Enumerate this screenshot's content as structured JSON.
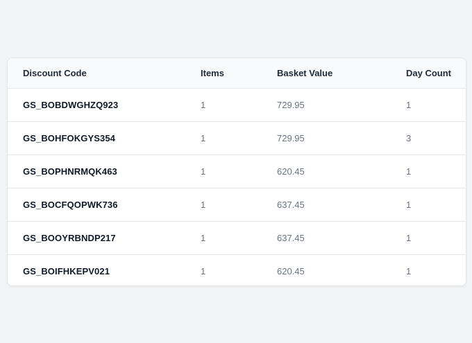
{
  "table": {
    "headers": {
      "code": "Discount Code",
      "items": "Items",
      "basket": "Basket Value",
      "days": "Day Count"
    },
    "rows": [
      {
        "code": "GS_BOBDWGHZQ923",
        "items": "1",
        "basket": "729.95",
        "days": "1"
      },
      {
        "code": "GS_BOHFOKGYS354",
        "items": "1",
        "basket": "729.95",
        "days": "3"
      },
      {
        "code": "GS_BOPHNRMQK463",
        "items": "1",
        "basket": "620.45",
        "days": "1"
      },
      {
        "code": "GS_BOCFQOPWK736",
        "items": "1",
        "basket": "637.45",
        "days": "1"
      },
      {
        "code": "GS_BOOYRBNDP217",
        "items": "1",
        "basket": "637.45",
        "days": "1"
      },
      {
        "code": "GS_BOIFHKEPV021",
        "items": "1",
        "basket": "620.45",
        "days": "1"
      }
    ]
  },
  "colors": {
    "page_background": "#f3f4f6",
    "header_background": "#f8fafc",
    "border": "#e5e7eb",
    "code_text": "#111827",
    "muted_text": "#6b7280"
  }
}
